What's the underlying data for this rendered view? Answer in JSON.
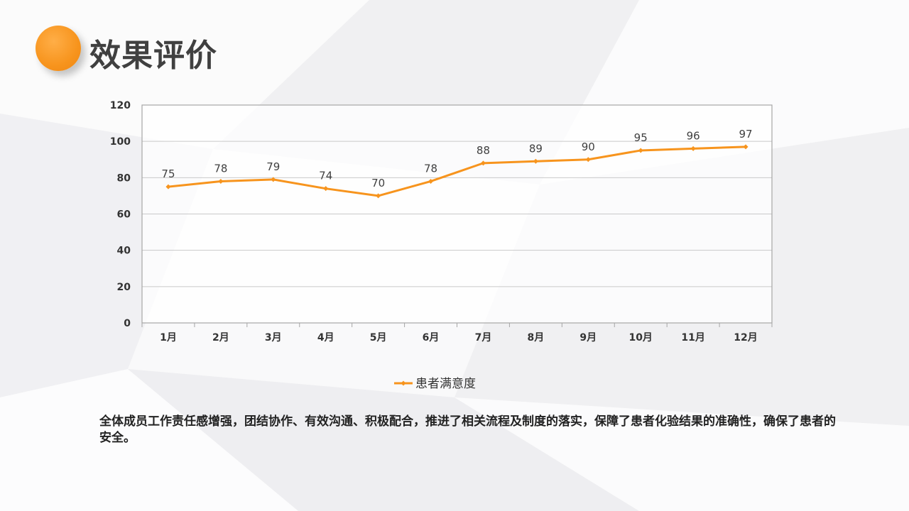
{
  "page": {
    "title": "效果评价",
    "body_text": "全体成员工作责任感增强，团结协作、有效沟通、积极配合，推进了相关流程及制度的落实，保障了患者化验结果的准确性，确保了患者的安全。",
    "accent_color": "#f7941d"
  },
  "chart_data": {
    "type": "line",
    "categories": [
      "1月",
      "2月",
      "3月",
      "4月",
      "5月",
      "6月",
      "7月",
      "8月",
      "9月",
      "10月",
      "11月",
      "12月"
    ],
    "series": [
      {
        "name": "患者满意度",
        "values": [
          75,
          78,
          79,
          74,
          70,
          78,
          88,
          89,
          90,
          95,
          96,
          97
        ],
        "color": "#f7941d"
      }
    ],
    "ylim": [
      0,
      120
    ],
    "yticks": [
      0,
      20,
      40,
      60,
      80,
      100,
      120
    ],
    "grid": true,
    "legend": "bottom",
    "data_labels": true
  }
}
